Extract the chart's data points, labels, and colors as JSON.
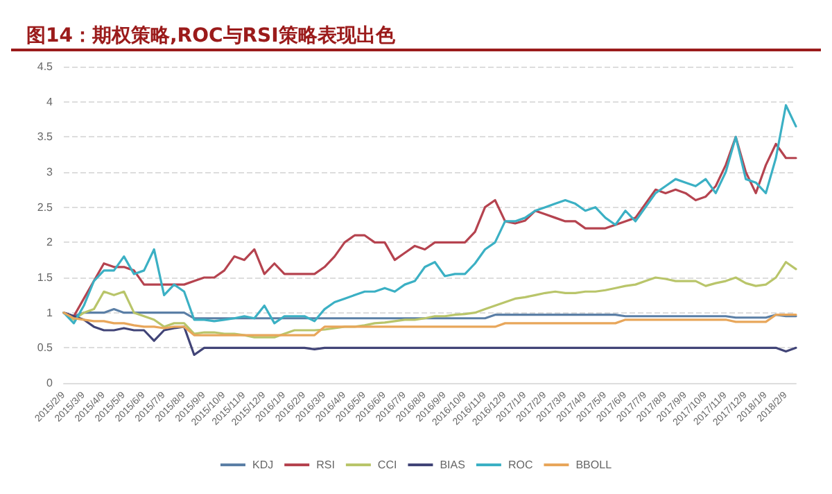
{
  "chart_data": {
    "type": "line",
    "title": "图14：期权策略,ROC与RSI策略表现出色",
    "categories": [
      "2015/2/9",
      null,
      "2015/3/9",
      null,
      "2015/4/9",
      null,
      "2015/5/9",
      null,
      "2015/6/9",
      null,
      "2015/7/9",
      null,
      "2015/8/9",
      null,
      "2015/9/9",
      null,
      "2015/10/9",
      null,
      "2015/11/9",
      null,
      "2015/12/9",
      null,
      "2016/1/9",
      null,
      "2016/2/9",
      null,
      "2016/3/9",
      null,
      "2016/4/9",
      null,
      "2016/5/9",
      null,
      "2016/6/9",
      null,
      "2016/7/9",
      null,
      "2016/8/9",
      null,
      "2016/9/9",
      null,
      "2016/10/9",
      null,
      "2016/11/9",
      null,
      "2016/12/9",
      null,
      "2017/1/9",
      null,
      "2017/2/9",
      null,
      "2017/3/9",
      null,
      "2017/4/9",
      null,
      "2017/5/9",
      null,
      "2017/6/9",
      null,
      "2017/7/9",
      null,
      "2017/8/9",
      null,
      "2017/9/9",
      null,
      "2017/10/9",
      null,
      "2017/11/9",
      null,
      "2017/12/9",
      null,
      "2018/1/9",
      null,
      "2018/2/9",
      null
    ],
    "series": [
      {
        "name": "KDJ",
        "color": "#5b7fa6",
        "values": [
          1,
          0.95,
          1,
          1,
          1,
          1.05,
          1,
          1,
          1,
          1,
          1,
          1,
          1,
          0.92,
          0.92,
          0.92,
          0.92,
          0.92,
          0.92,
          0.92,
          0.92,
          0.92,
          0.92,
          0.92,
          0.92,
          0.92,
          0.92,
          0.92,
          0.92,
          0.92,
          0.92,
          0.92,
          0.92,
          0.92,
          0.92,
          0.92,
          0.92,
          0.92,
          0.92,
          0.92,
          0.92,
          0.92,
          0.92,
          0.97,
          0.97,
          0.97,
          0.97,
          0.97,
          0.97,
          0.97,
          0.97,
          0.97,
          0.97,
          0.97,
          0.97,
          0.97,
          0.95,
          0.95,
          0.95,
          0.95,
          0.95,
          0.95,
          0.95,
          0.95,
          0.95,
          0.95,
          0.95,
          0.93,
          0.93,
          0.93,
          0.93,
          0.97,
          0.95,
          0.95
        ]
      },
      {
        "name": "RSI",
        "color": "#b5434f",
        "values": [
          1,
          0.95,
          1.2,
          1.45,
          1.7,
          1.65,
          1.65,
          1.6,
          1.4,
          1.4,
          1.4,
          1.4,
          1.4,
          1.45,
          1.5,
          1.5,
          1.6,
          1.8,
          1.75,
          1.9,
          1.55,
          1.7,
          1.55,
          1.55,
          1.55,
          1.55,
          1.65,
          1.8,
          2.0,
          2.1,
          2.1,
          2.0,
          2.0,
          1.75,
          1.85,
          1.95,
          1.9,
          2.0,
          2.0,
          2.0,
          2.0,
          2.15,
          2.5,
          2.6,
          2.3,
          2.27,
          2.31,
          2.45,
          2.4,
          2.35,
          2.3,
          2.3,
          2.2,
          2.2,
          2.2,
          2.25,
          2.3,
          2.35,
          2.55,
          2.75,
          2.7,
          2.75,
          2.7,
          2.6,
          2.65,
          2.8,
          3.1,
          3.5,
          3.0,
          2.7,
          3.1,
          3.4,
          3.2,
          3.2
        ]
      },
      {
        "name": "CCI",
        "color": "#b9c56a",
        "values": [
          1,
          0.9,
          1.0,
          1.05,
          1.3,
          1.25,
          1.3,
          1.0,
          0.95,
          0.9,
          0.8,
          0.85,
          0.85,
          0.7,
          0.72,
          0.72,
          0.7,
          0.7,
          0.68,
          0.65,
          0.65,
          0.65,
          0.7,
          0.75,
          0.75,
          0.75,
          0.76,
          0.78,
          0.8,
          0.8,
          0.82,
          0.85,
          0.86,
          0.88,
          0.9,
          0.9,
          0.92,
          0.95,
          0.95,
          0.97,
          0.98,
          1.0,
          1.05,
          1.1,
          1.15,
          1.2,
          1.22,
          1.25,
          1.28,
          1.3,
          1.28,
          1.28,
          1.3,
          1.3,
          1.32,
          1.35,
          1.38,
          1.4,
          1.45,
          1.5,
          1.48,
          1.45,
          1.45,
          1.45,
          1.38,
          1.42,
          1.45,
          1.5,
          1.42,
          1.38,
          1.4,
          1.5,
          1.72,
          1.62
        ]
      },
      {
        "name": "BIAS",
        "color": "#414477",
        "values": [
          1,
          0.95,
          0.9,
          0.8,
          0.75,
          0.75,
          0.78,
          0.75,
          0.75,
          0.6,
          0.75,
          0.78,
          0.8,
          0.4,
          0.5,
          0.5,
          0.5,
          0.5,
          0.5,
          0.5,
          0.5,
          0.5,
          0.5,
          0.5,
          0.5,
          0.48,
          0.5,
          0.5,
          0.5,
          0.5,
          0.5,
          0.5,
          0.5,
          0.5,
          0.5,
          0.5,
          0.5,
          0.5,
          0.5,
          0.5,
          0.5,
          0.5,
          0.5,
          0.5,
          0.5,
          0.5,
          0.5,
          0.5,
          0.5,
          0.5,
          0.5,
          0.5,
          0.5,
          0.5,
          0.5,
          0.5,
          0.5,
          0.5,
          0.5,
          0.5,
          0.5,
          0.5,
          0.5,
          0.5,
          0.5,
          0.5,
          0.5,
          0.5,
          0.5,
          0.5,
          0.5,
          0.5,
          0.45,
          0.5
        ]
      },
      {
        "name": "ROC",
        "color": "#3bb0c4",
        "values": [
          1,
          0.85,
          1.1,
          1.45,
          1.6,
          1.6,
          1.8,
          1.55,
          1.6,
          1.9,
          1.25,
          1.4,
          1.3,
          0.9,
          0.9,
          0.88,
          0.9,
          0.92,
          0.95,
          0.92,
          1.1,
          0.85,
          0.95,
          0.95,
          0.95,
          0.88,
          1.05,
          1.15,
          1.2,
          1.25,
          1.3,
          1.3,
          1.35,
          1.3,
          1.4,
          1.45,
          1.65,
          1.72,
          1.52,
          1.55,
          1.55,
          1.7,
          1.9,
          2.0,
          2.3,
          2.3,
          2.35,
          2.45,
          2.5,
          2.55,
          2.6,
          2.55,
          2.45,
          2.5,
          2.35,
          2.25,
          2.45,
          2.3,
          2.5,
          2.7,
          2.8,
          2.9,
          2.85,
          2.8,
          2.9,
          2.7,
          3.0,
          3.5,
          2.9,
          2.85,
          2.7,
          3.2,
          3.95,
          3.65
        ]
      },
      {
        "name": "BBOLL",
        "color": "#e8a65a",
        "values": [
          1,
          0.92,
          0.9,
          0.88,
          0.88,
          0.85,
          0.85,
          0.82,
          0.8,
          0.8,
          0.78,
          0.8,
          0.8,
          0.68,
          0.68,
          0.68,
          0.68,
          0.68,
          0.68,
          0.68,
          0.68,
          0.68,
          0.68,
          0.68,
          0.68,
          0.68,
          0.8,
          0.8,
          0.8,
          0.8,
          0.8,
          0.8,
          0.8,
          0.8,
          0.8,
          0.8,
          0.8,
          0.8,
          0.8,
          0.8,
          0.8,
          0.8,
          0.8,
          0.8,
          0.85,
          0.85,
          0.85,
          0.85,
          0.85,
          0.85,
          0.85,
          0.85,
          0.85,
          0.85,
          0.85,
          0.85,
          0.9,
          0.9,
          0.9,
          0.9,
          0.9,
          0.9,
          0.9,
          0.9,
          0.9,
          0.9,
          0.9,
          0.87,
          0.87,
          0.87,
          0.87,
          0.97,
          0.97,
          0.97
        ]
      }
    ],
    "ylim": [
      0,
      4.5
    ],
    "yticks": [
      0,
      0.5,
      1,
      1.5,
      2,
      2.5,
      3,
      3.5,
      4,
      4.5
    ],
    "grid": "y",
    "legend": "bottom",
    "marker": "none",
    "line_style": "solid"
  }
}
